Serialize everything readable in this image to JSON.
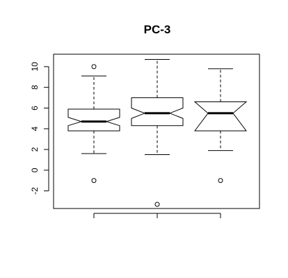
{
  "chart_data": {
    "type": "boxplot",
    "notched": true,
    "title": "PC-3",
    "xlabel": "",
    "ylabel": "",
    "ylim": [
      -3.7,
      11.2
    ],
    "y_ticks": [
      -2,
      0,
      2,
      4,
      6,
      8,
      10
    ],
    "y_tick_labels": [
      "-2",
      "0",
      "2",
      "4",
      "6",
      "8",
      "10"
    ],
    "x_tick_labels_shown": false,
    "grid": false,
    "legend": "none",
    "box_fill": "#ffffff",
    "line_color": "#000000",
    "groups": [
      {
        "lower_whisker": 1.6,
        "q1": 3.8,
        "median": 4.7,
        "q3": 5.9,
        "upper_whisker": 9.1,
        "notch_low": 4.3,
        "notch_high": 5.1,
        "outliers": [
          -1.0,
          10.0
        ]
      },
      {
        "lower_whisker": 1.5,
        "q1": 4.3,
        "median": 5.5,
        "q3": 7.0,
        "upper_whisker": 10.7,
        "notch_low": 5.0,
        "notch_high": 6.0,
        "outliers": [
          -3.3
        ]
      },
      {
        "lower_whisker": 1.9,
        "q1": 3.8,
        "median": 5.5,
        "q3": 6.6,
        "upper_whisker": 9.8,
        "notch_low": 3.8,
        "notch_high": 6.6,
        "outliers": [
          -1.0
        ]
      }
    ]
  }
}
